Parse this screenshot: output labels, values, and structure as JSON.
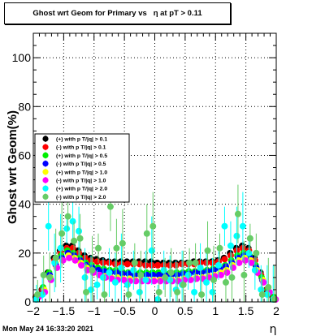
{
  "title": "Ghost wrt Geom for Primary vs   η at pT > 0.11",
  "footer": "Mon May 24 16:33:20 2021",
  "chart_data": {
    "type": "scatter",
    "xlabel": "η",
    "ylabel": "Ghost wrt Geom(%)",
    "xlim": [
      -2,
      2
    ],
    "ylim": [
      0,
      110
    ],
    "x_ticks": [
      -2,
      -1.5,
      -1,
      -0.5,
      0,
      0.5,
      1,
      1.5,
      2
    ],
    "x_tick_labels": [
      "−2",
      "−1.5",
      "−1",
      "−0.5",
      "0",
      "0.5",
      "1",
      "1.5",
      "2"
    ],
    "y_ticks": [
      0,
      20,
      40,
      60,
      80,
      100
    ],
    "y_tick_labels": [
      "0",
      "20",
      "40",
      "60",
      "80",
      "100"
    ],
    "grid": true,
    "legend_position": "middle-left",
    "series": [
      {
        "name": "(+) with p T/|q| > 0.1",
        "color": "#000000",
        "marker": "circle",
        "x": [
          -1.96,
          -1.86,
          -1.76,
          -1.66,
          -1.56,
          -1.46,
          -1.36,
          -1.26,
          -1.16,
          -1.06,
          -0.96,
          -0.86,
          -0.76,
          -0.66,
          -0.56,
          -0.46,
          -0.36,
          -0.26,
          -0.16,
          -0.06,
          0.04,
          0.14,
          0.24,
          0.34,
          0.44,
          0.54,
          0.64,
          0.74,
          0.84,
          0.94,
          1.04,
          1.14,
          1.24,
          1.34,
          1.44,
          1.54,
          1.64,
          1.74,
          1.84,
          1.94
        ],
        "y": [
          2,
          5,
          12,
          18,
          21,
          23,
          23,
          21,
          19,
          18,
          17.5,
          17,
          16.5,
          16.5,
          16.5,
          16.5,
          16.5,
          16.5,
          16.5,
          16.5,
          16,
          16,
          16,
          16,
          16,
          16,
          16.5,
          16.5,
          16.5,
          16.5,
          17,
          18,
          20,
          22,
          23,
          22,
          18,
          12,
          5,
          2
        ]
      },
      {
        "name": "(-) with p T/|q| > 0.1",
        "color": "#ff0000",
        "marker": "circle",
        "x": [
          -1.95,
          -1.85,
          -1.75,
          -1.65,
          -1.55,
          -1.45,
          -1.35,
          -1.25,
          -1.15,
          -1.05,
          -0.95,
          -0.85,
          -0.75,
          -0.65,
          -0.55,
          -0.45,
          -0.35,
          -0.25,
          -0.15,
          -0.05,
          0.05,
          0.15,
          0.25,
          0.35,
          0.45,
          0.55,
          0.65,
          0.75,
          0.85,
          0.95,
          1.05,
          1.15,
          1.25,
          1.35,
          1.45,
          1.55,
          1.65,
          1.75,
          1.85,
          1.95
        ],
        "y": [
          2,
          5,
          11,
          17,
          20,
          22,
          22,
          20,
          18,
          17,
          16.5,
          16,
          16,
          15.5,
          15.5,
          15.5,
          15.5,
          15.5,
          15,
          15,
          15,
          15,
          15,
          15,
          15.5,
          15.5,
          15.5,
          16,
          16,
          16,
          16.5,
          17.5,
          19,
          21,
          22,
          21,
          17,
          11,
          5,
          2
        ]
      },
      {
        "name": "(+) with p T/|q| > 0.5",
        "color": "#00ee00",
        "marker": "circle",
        "x": [
          -1.94,
          -1.84,
          -1.74,
          -1.64,
          -1.54,
          -1.44,
          -1.34,
          -1.24,
          -1.14,
          -1.04,
          -0.94,
          -0.84,
          -0.74,
          -0.64,
          -0.54,
          -0.44,
          -0.34,
          -0.24,
          -0.14,
          -0.04,
          0.06,
          0.16,
          0.26,
          0.36,
          0.46,
          0.56,
          0.66,
          0.76,
          0.86,
          0.96,
          1.06,
          1.16,
          1.26,
          1.36,
          1.46,
          1.56,
          1.66,
          1.76,
          1.86,
          1.96
        ],
        "y": [
          2,
          6,
          12,
          16,
          19,
          21,
          20,
          18,
          16,
          15,
          14,
          13.5,
          13,
          13,
          12.5,
          12,
          12,
          12,
          12,
          12,
          12,
          12,
          12,
          12,
          12,
          12.5,
          12.5,
          13,
          13,
          13.5,
          14,
          15,
          17,
          19,
          20,
          19,
          15,
          10,
          5,
          2
        ]
      },
      {
        "name": "(-) with p T/|q| > 0.5",
        "color": "#0000ff",
        "marker": "circle",
        "x": [
          -1.93,
          -1.83,
          -1.73,
          -1.63,
          -1.53,
          -1.43,
          -1.33,
          -1.23,
          -1.13,
          -1.03,
          -0.93,
          -0.83,
          -0.73,
          -0.63,
          -0.53,
          -0.43,
          -0.33,
          -0.23,
          -0.13,
          -0.03,
          0.07,
          0.17,
          0.27,
          0.37,
          0.47,
          0.57,
          0.67,
          0.77,
          0.87,
          0.97,
          1.07,
          1.17,
          1.27,
          1.37,
          1.47,
          1.57,
          1.67,
          1.77,
          1.87,
          1.97
        ],
        "y": [
          2,
          5,
          11,
          15,
          18,
          20,
          19,
          17,
          15,
          14,
          13,
          12.5,
          12,
          12,
          11.5,
          11.5,
          11,
          11,
          11,
          11,
          11,
          11,
          11,
          11,
          11.5,
          11.5,
          12,
          12,
          12.5,
          13,
          13.5,
          14.5,
          16,
          18,
          19,
          18,
          14,
          9,
          4,
          1
        ]
      },
      {
        "name": "(+) with p T/|q| > 1.0",
        "color": "#ffff00",
        "marker": "circle",
        "x": [
          -1.92,
          -1.82,
          -1.72,
          -1.62,
          -1.52,
          -1.42,
          -1.32,
          -1.22,
          -1.12,
          -1.02,
          -0.92,
          -0.82,
          -0.72,
          -0.62,
          -0.52,
          -0.42,
          -0.32,
          -0.22,
          -0.12,
          -0.02,
          0.08,
          0.18,
          0.28,
          0.38,
          0.48,
          0.58,
          0.68,
          0.78,
          0.88,
          0.98,
          1.08,
          1.18,
          1.28,
          1.38,
          1.48,
          1.58,
          1.68,
          1.78,
          1.88,
          1.98
        ],
        "y": [
          2,
          5,
          10,
          14,
          17,
          19,
          18,
          16,
          14,
          12,
          11,
          10.5,
          10,
          10,
          9.5,
          9.5,
          9,
          9,
          9,
          9,
          9,
          9,
          9,
          9,
          9.5,
          9.5,
          10,
          10,
          10.5,
          11,
          12,
          13,
          15,
          17,
          18,
          17,
          13,
          9,
          4,
          1
        ]
      },
      {
        "name": "(-) with p T/|q| > 1.0",
        "color": "#ff00ff",
        "marker": "circle",
        "x": [
          -1.91,
          -1.81,
          -1.71,
          -1.61,
          -1.51,
          -1.41,
          -1.31,
          -1.21,
          -1.11,
          -1.01,
          -0.91,
          -0.81,
          -0.71,
          -0.61,
          -0.51,
          -0.41,
          -0.31,
          -0.21,
          -0.11,
          -0.01,
          0.09,
          0.19,
          0.29,
          0.39,
          0.49,
          0.59,
          0.69,
          0.79,
          0.89,
          0.99,
          1.09,
          1.19,
          1.29,
          1.39,
          1.49,
          1.59,
          1.69,
          1.79,
          1.89,
          1.99
        ],
        "y": [
          2,
          4,
          9,
          14,
          17,
          18,
          17,
          15,
          13,
          12,
          11,
          10,
          9.5,
          9,
          9,
          8.5,
          8.5,
          8.5,
          8.5,
          8.5,
          8.5,
          8.5,
          8.5,
          8.5,
          9,
          9,
          9.5,
          9.5,
          10,
          10.5,
          11,
          12,
          14,
          16,
          17,
          16,
          12,
          8,
          4,
          1
        ]
      },
      {
        "name": "(+) with p T/|q| > 2.0",
        "color": "#00ffff",
        "marker": "circle",
        "x": [
          -1.95,
          -1.85,
          -1.75,
          -1.65,
          -1.55,
          -1.45,
          -1.35,
          -1.25,
          -1.15,
          -1.05,
          -0.95,
          -0.85,
          -0.75,
          -0.65,
          -0.55,
          -0.45,
          -0.35,
          -0.25,
          -0.15,
          -0.05,
          0.05,
          0.15,
          0.25,
          0.35,
          0.45,
          0.55,
          0.65,
          0.75,
          0.85,
          0.95,
          1.05,
          1.15,
          1.25,
          1.35,
          1.45,
          1.55,
          1.65,
          1.75,
          1.85,
          1.95
        ],
        "y": [
          1,
          3,
          31,
          16,
          22,
          30,
          33,
          29,
          10,
          5,
          7,
          10,
          12,
          8,
          14,
          7,
          13,
          4,
          9,
          21,
          1,
          13,
          9,
          5,
          7,
          11,
          4,
          14,
          8,
          4,
          15,
          31,
          23,
          27,
          31,
          20,
          13,
          5,
          3,
          1
        ]
      },
      {
        "name": "(-) with p T/|q| > 2.0",
        "color": "#66cc66",
        "marker": "circle",
        "x": [
          -1.93,
          -1.83,
          -1.73,
          -1.63,
          -1.53,
          -1.43,
          -1.33,
          -1.23,
          -1.13,
          -1.03,
          -0.93,
          -0.83,
          -0.73,
          -0.63,
          -0.53,
          -0.43,
          -0.33,
          -0.23,
          -0.13,
          -0.03,
          0.07,
          0.17,
          0.27,
          0.37,
          0.47,
          0.57,
          0.67,
          0.77,
          0.87,
          0.97,
          1.07,
          1.17,
          1.27,
          1.37,
          1.47,
          1.57,
          1.67,
          1.77,
          1.87,
          1.97
        ],
        "y": [
          3,
          11,
          10,
          18,
          28,
          35,
          25,
          26,
          4,
          13,
          22,
          3,
          39,
          22,
          24,
          3,
          16,
          11,
          28,
          31,
          4,
          10,
          12,
          4,
          7,
          16,
          16,
          3,
          21,
          9,
          22,
          8,
          10,
          36,
          11,
          26,
          20,
          3,
          6,
          1
        ]
      }
    ]
  }
}
